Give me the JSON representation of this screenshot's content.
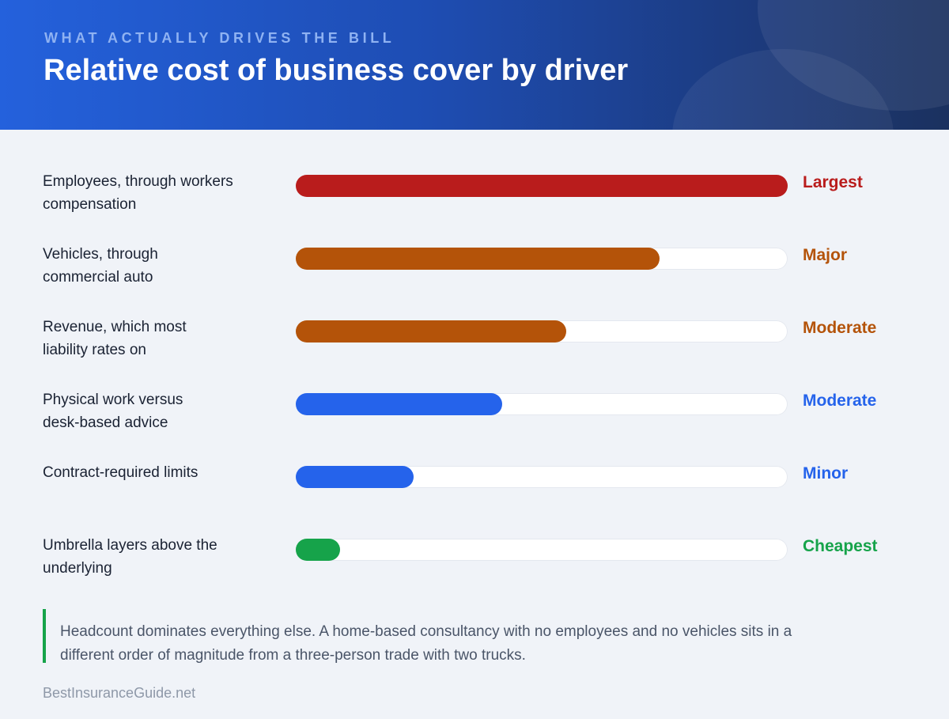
{
  "header": {
    "eyebrow": "WHAT ACTUALLY DRIVES THE BILL",
    "title": "Relative cost of business cover by driver"
  },
  "chart_data": {
    "type": "bar",
    "orientation": "horizontal",
    "title": "Relative cost of business cover by driver",
    "xlim": [
      0,
      100
    ],
    "categories": [
      "Employees, through workers compensation",
      "Vehicles, through commercial auto",
      "Revenue, which most liability rates on",
      "Physical work versus desk-based advice",
      "Contract-required limits",
      "Umbrella layers above the underlying"
    ],
    "values": [
      100,
      74,
      55,
      42,
      24,
      9
    ],
    "level_labels": [
      "Largest",
      "Major",
      "Moderate",
      "Moderate",
      "Minor",
      "Cheapest"
    ],
    "colors": [
      "#b91c1c",
      "#b45309",
      "#b45309",
      "#2563eb",
      "#2563eb",
      "#16a34a"
    ],
    "track_color": "#ffffff",
    "grid": false
  },
  "rows": [
    {
      "label_line1": "Employees, through workers",
      "label_line2": "compensation"
    },
    {
      "label_line1": "Vehicles, through",
      "label_line2": "commercial auto"
    },
    {
      "label_line1": "Revenue, which most",
      "label_line2": "liability rates on"
    },
    {
      "label_line1": "Physical work versus",
      "label_line2": "desk-based advice"
    },
    {
      "label_line1": "Contract-required limits",
      "label_line2": ""
    },
    {
      "label_line1": "Umbrella layers above the",
      "label_line2": "underlying"
    }
  ],
  "note": {
    "text": "Headcount dominates everything else. A home-based consultancy with no employees and no vehicles sits in a different order of magnitude from a three-person trade with two trucks.",
    "accent_color": "#16a34a"
  },
  "footer": {
    "source": "BestInsuranceGuide.net"
  }
}
